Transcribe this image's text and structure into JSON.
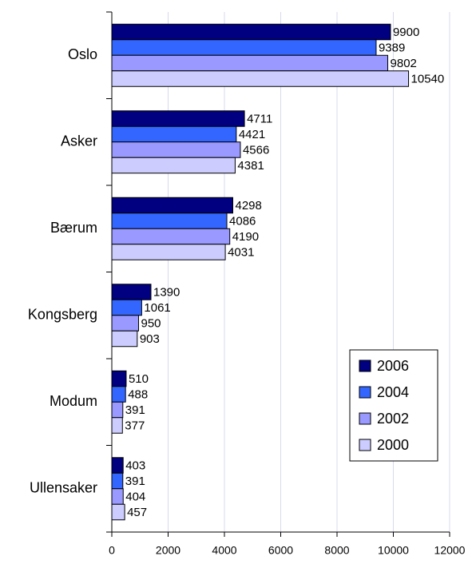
{
  "chart_data": {
    "type": "bar",
    "orientation": "horizontal",
    "categories": [
      "Oslo",
      "Asker",
      "Bærum",
      "Kongsberg",
      "Modum",
      "Ullensaker"
    ],
    "series": [
      {
        "name": "2006",
        "color": "#000080",
        "values": [
          9900,
          4711,
          4298,
          1390,
          510,
          403
        ]
      },
      {
        "name": "2004",
        "color": "#3366ff",
        "values": [
          9389,
          4421,
          4086,
          1061,
          488,
          391
        ]
      },
      {
        "name": "2002",
        "color": "#9999ff",
        "values": [
          9802,
          4566,
          4190,
          950,
          391,
          404
        ]
      },
      {
        "name": "2000",
        "color": "#ccccff",
        "values": [
          10540,
          4381,
          4031,
          903,
          377,
          457
        ]
      }
    ],
    "xlim": [
      0,
      12000
    ],
    "xticks": [
      0,
      2000,
      4000,
      6000,
      8000,
      10000,
      12000
    ],
    "grid": true,
    "legend": "lower right"
  }
}
